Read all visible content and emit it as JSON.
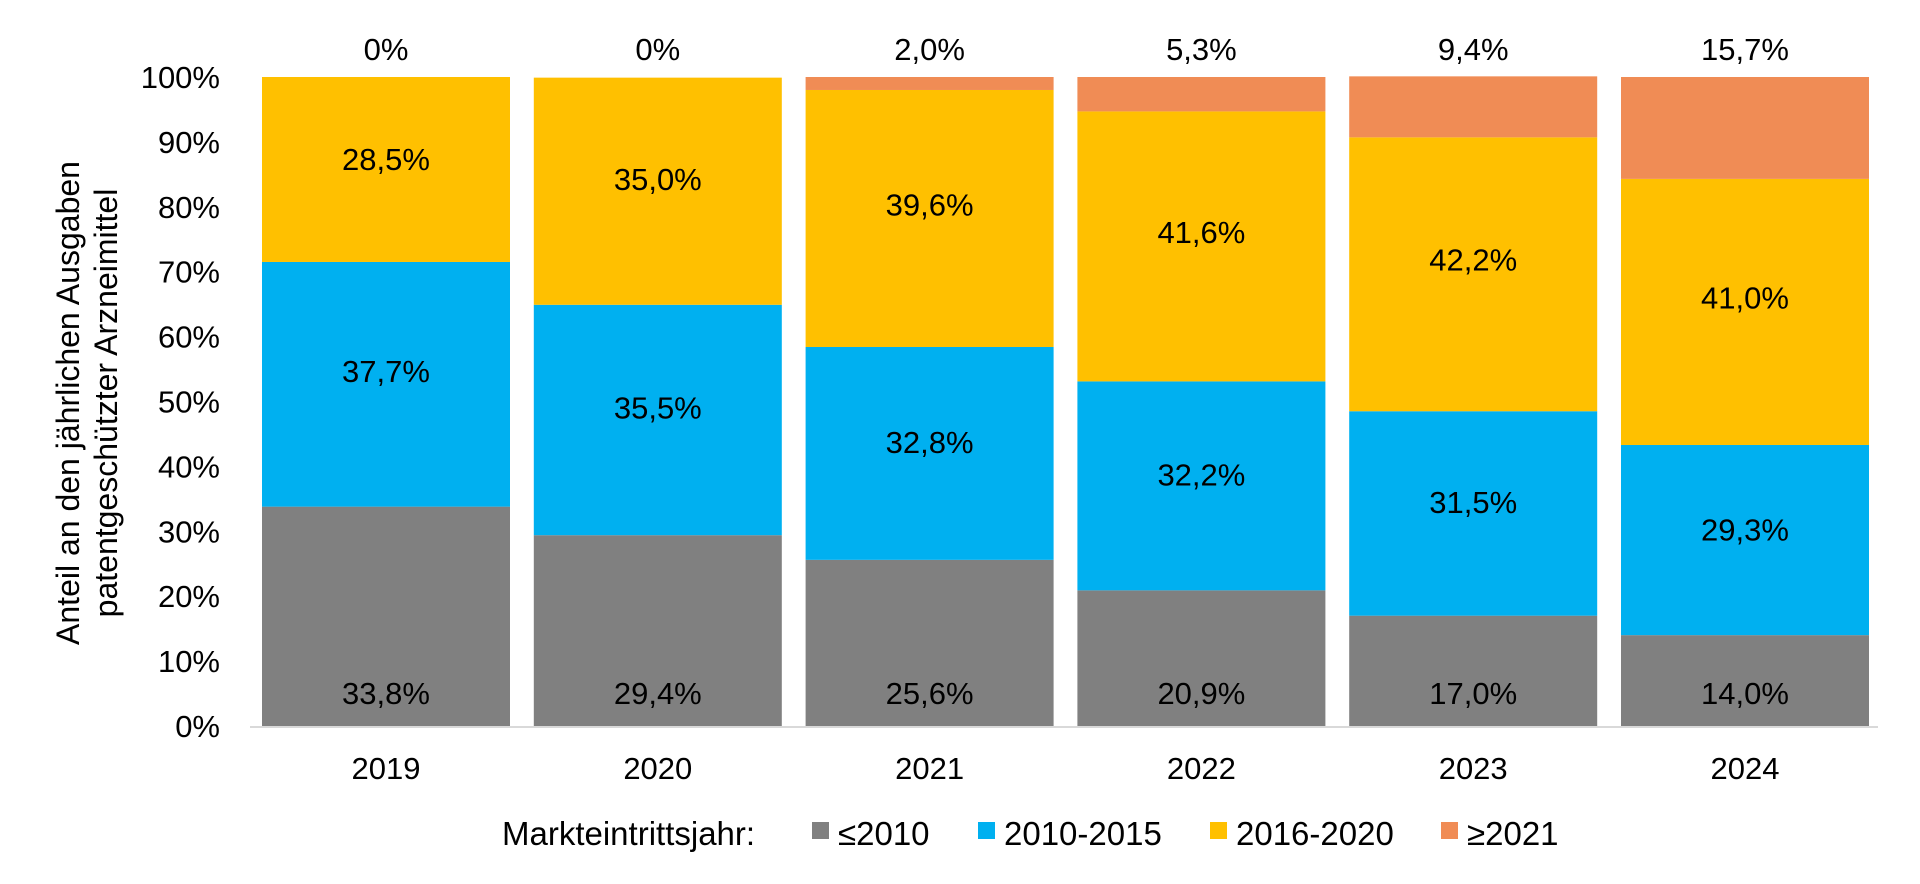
{
  "chart_data": {
    "type": "bar",
    "stacked": true,
    "normalized": true,
    "categories": [
      "2019",
      "2020",
      "2021",
      "2022",
      "2023",
      "2024"
    ],
    "series": [
      {
        "name": "≤2010",
        "color": "#808080",
        "values": [
          33.8,
          29.4,
          25.6,
          20.9,
          17.0,
          14.0
        ],
        "labels": [
          "33,8%",
          "29,4%",
          "25,6%",
          "20,9%",
          "17,0%",
          "14,0%"
        ]
      },
      {
        "name": "2010-2015",
        "color": "#00B0F0",
        "values": [
          37.7,
          35.5,
          32.8,
          32.2,
          31.5,
          29.3
        ],
        "labels": [
          "37,7%",
          "35,5%",
          "32,8%",
          "32,2%",
          "31,5%",
          "29,3%"
        ]
      },
      {
        "name": "2016-2020",
        "color": "#FFC000",
        "values": [
          28.5,
          35.0,
          39.6,
          41.6,
          42.2,
          41.0
        ],
        "labels": [
          "28,5%",
          "35,0%",
          "39,6%",
          "41,6%",
          "42,2%",
          "41,0%"
        ]
      },
      {
        "name": "≥2021",
        "color": "#F08C55",
        "values": [
          0,
          0,
          2.0,
          5.3,
          9.4,
          15.7
        ],
        "labels": [
          "0%",
          "0%",
          "2,0%",
          "5,3%",
          "9,4%",
          "15,7%"
        ]
      }
    ],
    "ylabel_line1": "Anteil an den jährlichen Ausgaben",
    "ylabel_line2": "patentgeschützter Arzneimittel",
    "ylim": [
      0,
      100
    ],
    "yticks": [
      "0%",
      "10%",
      "20%",
      "30%",
      "40%",
      "50%",
      "60%",
      "70%",
      "80%",
      "90%",
      "100%"
    ],
    "legend_title": "Markteintrittsjahr:",
    "legend_position": "bottom",
    "grid": false
  }
}
